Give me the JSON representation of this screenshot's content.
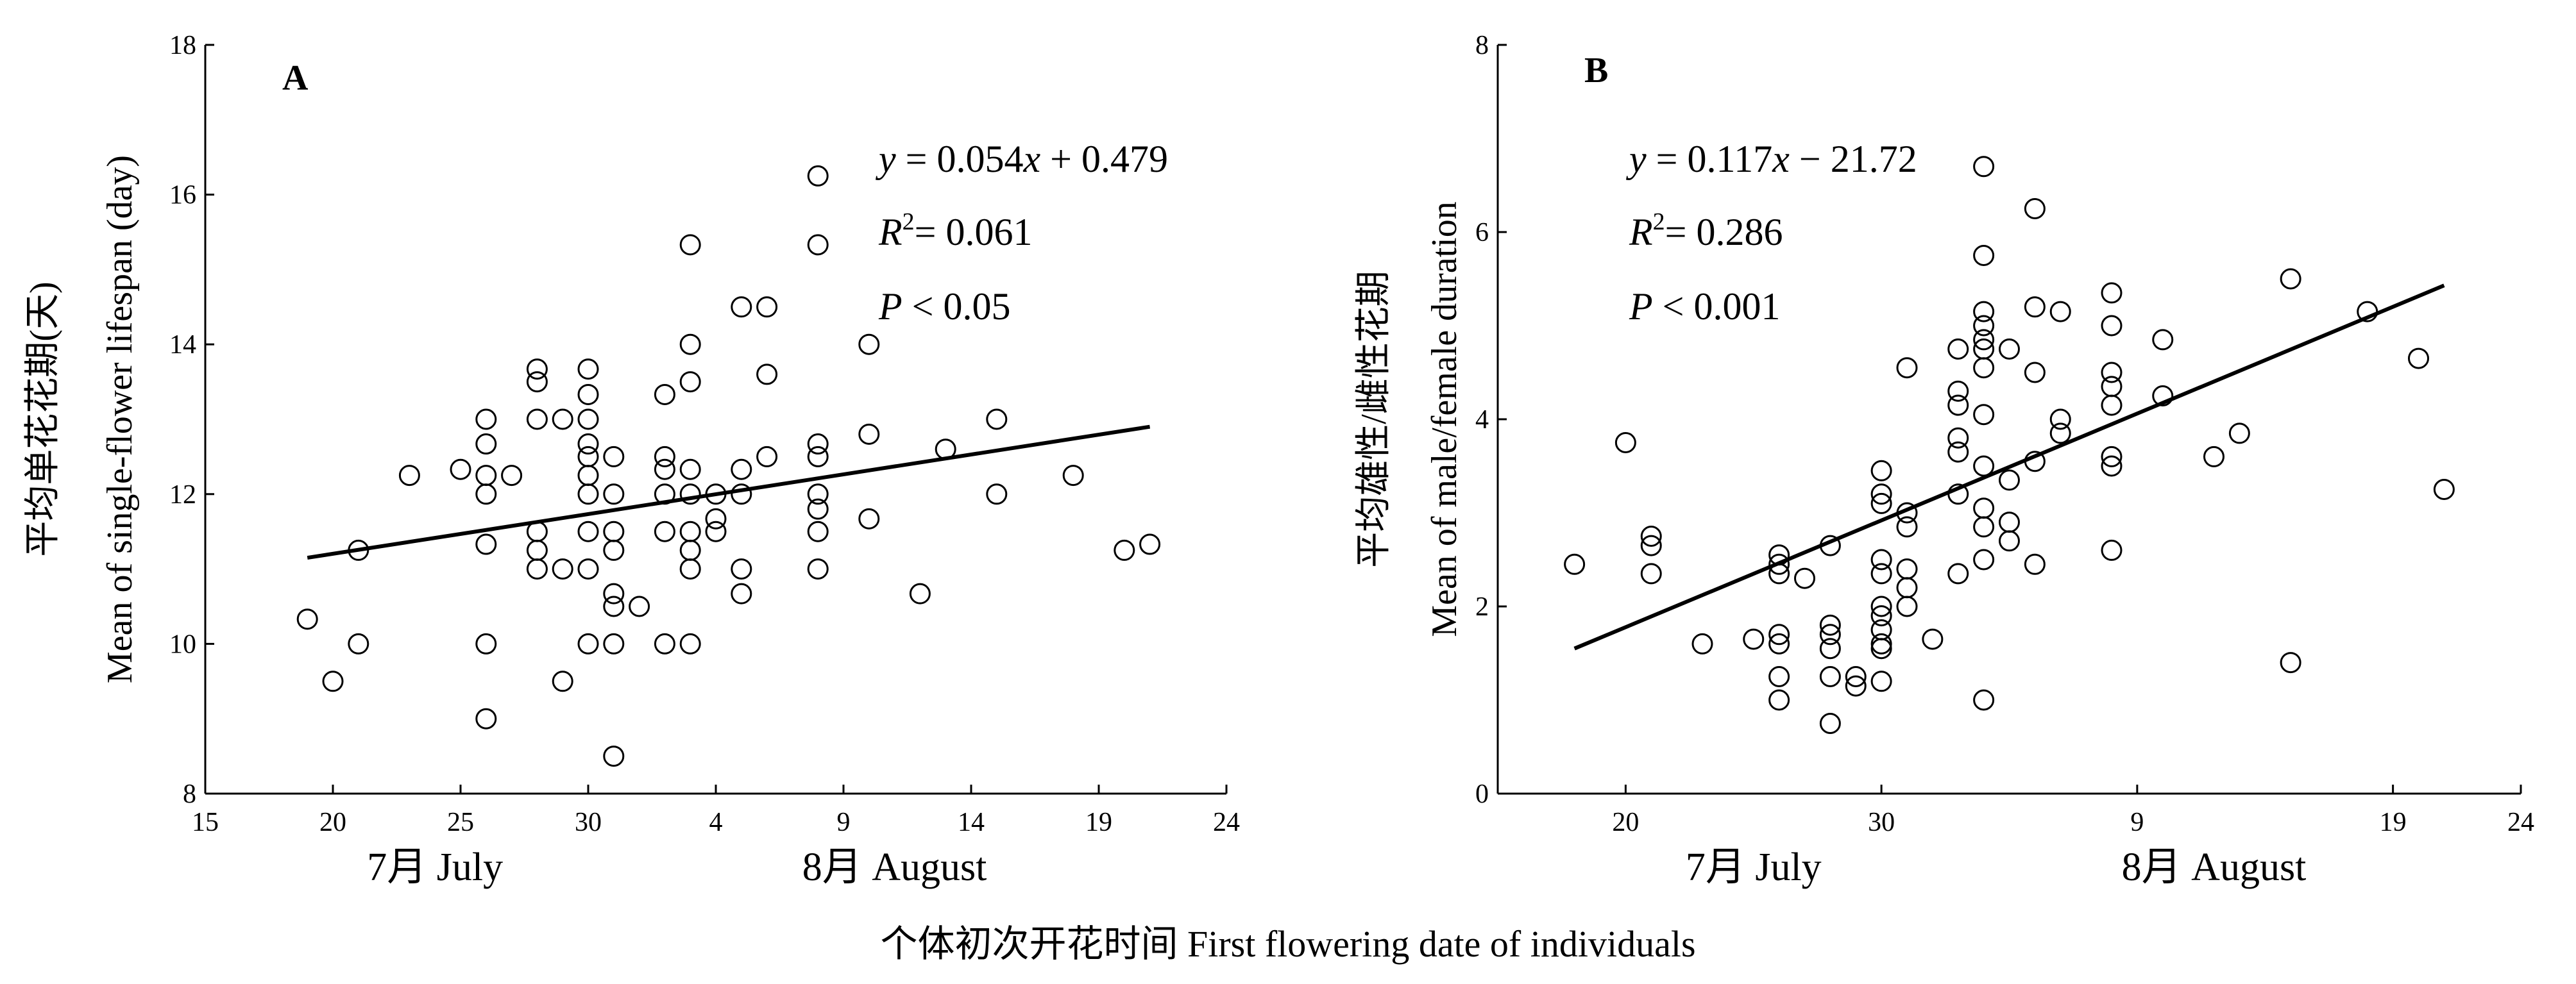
{
  "figure": {
    "common_xlabel": "个体初次开花时间  First flowering date of individuals"
  },
  "chart_data": [
    {
      "type": "scatter",
      "panel": "A",
      "ylabel": "平均单花花期(天)",
      "ylabel2": "Mean of single-flower lifespan (day)",
      "xlabel": "",
      "x_unit": "date",
      "xlim": [
        "07-15",
        "08-24"
      ],
      "ylim": [
        8,
        18
      ],
      "x_ticks": [
        "07-15",
        "07-20",
        "07-25",
        "07-30",
        "08-04",
        "08-09",
        "08-14",
        "08-19",
        "08-24"
      ],
      "x_tick_labels": [
        "15",
        "20",
        "25",
        "30",
        "4",
        "9",
        "14",
        "19",
        "24"
      ],
      "y_ticks": [
        8,
        10,
        12,
        14,
        16,
        18
      ],
      "y_tick_labels": [
        "8",
        "10",
        "12",
        "14",
        "16",
        "18"
      ],
      "month_labels": [
        {
          "text": "7月 July",
          "at": "07-24"
        },
        {
          "text": "8月 August",
          "at": "08-11"
        }
      ],
      "annotations": {
        "eq_y": "y",
        "eq_eq": " = ",
        "eq_b": "0.054",
        "eq_x": "x",
        "eq_rest": " + 0.479",
        "r_R": "R",
        "r_sup": "2",
        "r_rest": "= 0.061",
        "p_P": "P",
        "p_rest": " < 0.05"
      },
      "regression": {
        "x_start": "07-19",
        "y_start": 11.15,
        "x_end": "08-21",
        "y_end": 12.9
      },
      "points": [
        [
          "07-19",
          10.33
        ],
        [
          "07-20",
          9.5
        ],
        [
          "07-21",
          10.0
        ],
        [
          "07-21",
          11.25
        ],
        [
          "07-23",
          12.25
        ],
        [
          "07-25",
          12.33
        ],
        [
          "07-26",
          11.33
        ],
        [
          "07-26",
          12.0
        ],
        [
          "07-26",
          12.25
        ],
        [
          "07-26",
          12.67
        ],
        [
          "07-26",
          13.0
        ],
        [
          "07-26",
          10.0
        ],
        [
          "07-26",
          9.0
        ],
        [
          "07-27",
          12.25
        ],
        [
          "07-28",
          11.0
        ],
        [
          "07-28",
          11.25
        ],
        [
          "07-28",
          11.5
        ],
        [
          "07-28",
          13.0
        ],
        [
          "07-28",
          13.5
        ],
        [
          "07-28",
          13.67
        ],
        [
          "07-29",
          11.0
        ],
        [
          "07-29",
          9.5
        ],
        [
          "07-29",
          13.0
        ],
        [
          "07-30",
          10.0
        ],
        [
          "07-30",
          11.0
        ],
        [
          "07-30",
          11.5
        ],
        [
          "07-30",
          12.0
        ],
        [
          "07-30",
          12.25
        ],
        [
          "07-30",
          12.5
        ],
        [
          "07-30",
          12.67
        ],
        [
          "07-30",
          13.0
        ],
        [
          "07-30",
          13.33
        ],
        [
          "07-30",
          13.67
        ],
        [
          "07-31",
          8.5
        ],
        [
          "07-31",
          10.0
        ],
        [
          "07-31",
          10.5
        ],
        [
          "07-31",
          10.67
        ],
        [
          "07-31",
          11.25
        ],
        [
          "07-31",
          11.5
        ],
        [
          "07-31",
          12.0
        ],
        [
          "07-31",
          12.5
        ],
        [
          "08-01",
          10.5
        ],
        [
          "08-02",
          10.0
        ],
        [
          "08-02",
          11.5
        ],
        [
          "08-02",
          12.0
        ],
        [
          "08-02",
          12.33
        ],
        [
          "08-02",
          12.5
        ],
        [
          "08-02",
          13.33
        ],
        [
          "08-03",
          10.0
        ],
        [
          "08-03",
          11.0
        ],
        [
          "08-03",
          11.25
        ],
        [
          "08-03",
          11.5
        ],
        [
          "08-03",
          12.0
        ],
        [
          "08-03",
          12.33
        ],
        [
          "08-03",
          13.5
        ],
        [
          "08-03",
          14.0
        ],
        [
          "08-03",
          15.33
        ],
        [
          "08-04",
          11.5
        ],
        [
          "08-04",
          11.67
        ],
        [
          "08-04",
          12.0
        ],
        [
          "08-05",
          10.67
        ],
        [
          "08-05",
          11.0
        ],
        [
          "08-05",
          12.0
        ],
        [
          "08-05",
          12.33
        ],
        [
          "08-05",
          14.5
        ],
        [
          "08-06",
          12.5
        ],
        [
          "08-06",
          13.6
        ],
        [
          "08-06",
          14.5
        ],
        [
          "08-08",
          11.0
        ],
        [
          "08-08",
          11.5
        ],
        [
          "08-08",
          11.8
        ],
        [
          "08-08",
          12.0
        ],
        [
          "08-08",
          12.5
        ],
        [
          "08-08",
          12.67
        ],
        [
          "08-08",
          15.33
        ],
        [
          "08-08",
          16.25
        ],
        [
          "08-10",
          11.67
        ],
        [
          "08-10",
          12.8
        ],
        [
          "08-10",
          14.0
        ],
        [
          "08-12",
          10.67
        ],
        [
          "08-13",
          12.6
        ],
        [
          "08-15",
          12.0
        ],
        [
          "08-15",
          13.0
        ],
        [
          "08-18",
          12.25
        ],
        [
          "08-20",
          11.25
        ],
        [
          "08-21",
          11.33
        ]
      ]
    },
    {
      "type": "scatter",
      "panel": "B",
      "ylabel": "平均雄性/雌性花期",
      "ylabel2": "Mean of male/female duration",
      "xlabel": "",
      "x_unit": "date",
      "xlim": [
        "07-15",
        "08-24"
      ],
      "ylim": [
        0,
        8
      ],
      "x_ticks": [
        "07-20",
        "07-30",
        "08-09",
        "08-19",
        "08-24"
      ],
      "x_tick_labels": [
        "20",
        "30",
        "9",
        "19",
        "24"
      ],
      "y_ticks": [
        0,
        2,
        4,
        6,
        8
      ],
      "y_tick_labels": [
        "0",
        "2",
        "4",
        "6",
        "8"
      ],
      "month_labels": [
        {
          "text": "7月 July",
          "at": "07-25"
        },
        {
          "text": "8月 August",
          "at": "08-12"
        }
      ],
      "annotations": {
        "eq_y": "y",
        "eq_eq": " = ",
        "eq_b": "0.117",
        "eq_x": "x",
        "eq_rest": " − 21.72",
        "r_R": "R",
        "r_sup": "2",
        "r_rest": "= 0.286",
        "p_P": "P",
        "p_rest": " < 0.001"
      },
      "regression": {
        "x_start": "07-18",
        "y_start": 1.55,
        "x_end": "08-21",
        "y_end": 5.43
      },
      "points": [
        [
          "07-18",
          2.45
        ],
        [
          "07-20",
          3.75
        ],
        [
          "07-21",
          2.35
        ],
        [
          "07-21",
          2.65
        ],
        [
          "07-21",
          2.75
        ],
        [
          "07-23",
          1.6
        ],
        [
          "07-25",
          1.65
        ],
        [
          "07-26",
          1.0
        ],
        [
          "07-26",
          1.25
        ],
        [
          "07-26",
          1.6
        ],
        [
          "07-26",
          1.7
        ],
        [
          "07-26",
          2.35
        ],
        [
          "07-26",
          2.45
        ],
        [
          "07-26",
          2.55
        ],
        [
          "07-27",
          2.3
        ],
        [
          "07-28",
          0.75
        ],
        [
          "07-28",
          1.25
        ],
        [
          "07-28",
          1.55
        ],
        [
          "07-28",
          1.7
        ],
        [
          "07-28",
          1.8
        ],
        [
          "07-28",
          2.65
        ],
        [
          "07-29",
          1.15
        ],
        [
          "07-29",
          1.25
        ],
        [
          "07-30",
          1.2
        ],
        [
          "07-30",
          1.55
        ],
        [
          "07-30",
          1.6
        ],
        [
          "07-30",
          1.75
        ],
        [
          "07-30",
          1.9
        ],
        [
          "07-30",
          2.0
        ],
        [
          "07-30",
          2.35
        ],
        [
          "07-30",
          2.5
        ],
        [
          "07-30",
          3.1
        ],
        [
          "07-30",
          3.2
        ],
        [
          "07-30",
          3.45
        ],
        [
          "07-31",
          2.0
        ],
        [
          "07-31",
          2.2
        ],
        [
          "07-31",
          2.4
        ],
        [
          "07-31",
          2.85
        ],
        [
          "07-31",
          3.0
        ],
        [
          "07-31",
          4.55
        ],
        [
          "08-01",
          1.65
        ],
        [
          "08-02",
          2.35
        ],
        [
          "08-02",
          3.2
        ],
        [
          "08-02",
          3.65
        ],
        [
          "08-02",
          3.8
        ],
        [
          "08-02",
          4.15
        ],
        [
          "08-02",
          4.3
        ],
        [
          "08-02",
          4.75
        ],
        [
          "08-03",
          1.0
        ],
        [
          "08-03",
          2.5
        ],
        [
          "08-03",
          2.85
        ],
        [
          "08-03",
          3.05
        ],
        [
          "08-03",
          3.5
        ],
        [
          "08-03",
          4.05
        ],
        [
          "08-03",
          4.55
        ],
        [
          "08-03",
          4.75
        ],
        [
          "08-03",
          4.85
        ],
        [
          "08-03",
          5.0
        ],
        [
          "08-03",
          5.15
        ],
        [
          "08-03",
          5.75
        ],
        [
          "08-03",
          6.7
        ],
        [
          "08-04",
          2.7
        ],
        [
          "08-04",
          2.9
        ],
        [
          "08-04",
          3.35
        ],
        [
          "08-04",
          4.75
        ],
        [
          "08-05",
          2.45
        ],
        [
          "08-05",
          3.55
        ],
        [
          "08-05",
          4.5
        ],
        [
          "08-05",
          5.2
        ],
        [
          "08-05",
          6.25
        ],
        [
          "08-06",
          3.85
        ],
        [
          "08-06",
          4.0
        ],
        [
          "08-06",
          5.15
        ],
        [
          "08-08",
          2.6
        ],
        [
          "08-08",
          3.5
        ],
        [
          "08-08",
          3.6
        ],
        [
          "08-08",
          4.15
        ],
        [
          "08-08",
          4.35
        ],
        [
          "08-08",
          4.5
        ],
        [
          "08-08",
          5.0
        ],
        [
          "08-08",
          5.35
        ],
        [
          "08-10",
          4.25
        ],
        [
          "08-10",
          4.85
        ],
        [
          "08-12",
          3.6
        ],
        [
          "08-13",
          3.85
        ],
        [
          "08-15",
          1.4
        ],
        [
          "08-15",
          5.5
        ],
        [
          "08-18",
          5.15
        ],
        [
          "08-20",
          4.65
        ],
        [
          "08-21",
          3.25
        ]
      ]
    }
  ]
}
